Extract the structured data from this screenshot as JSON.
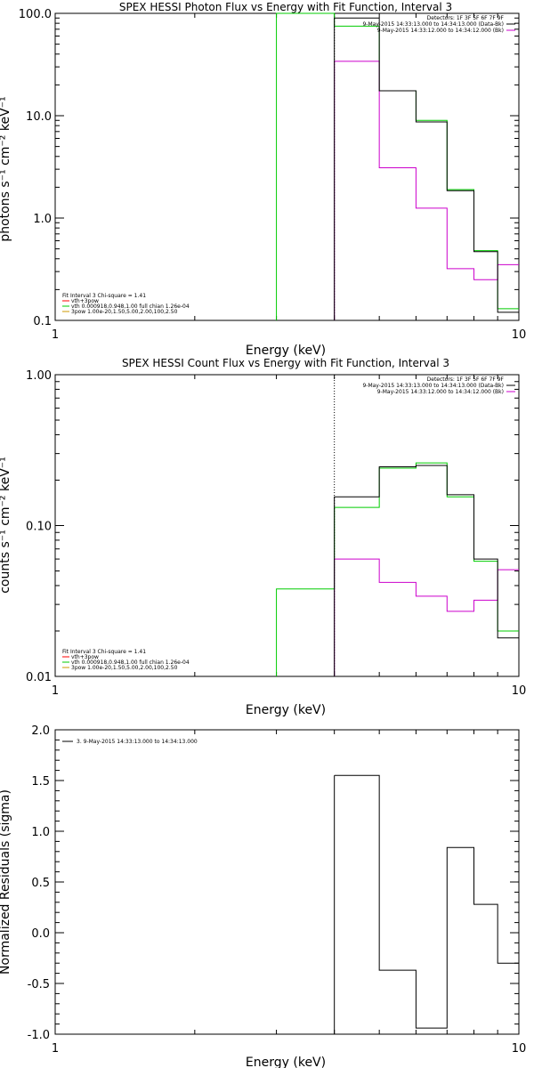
{
  "chart_data": [
    {
      "type": "line",
      "title": "SPEX HESSI Photon Flux vs Energy with Fit Function, Interval 3",
      "xlabel": "Energy (keV)",
      "ylabel": "photons s⁻¹ cm⁻² keV⁻¹",
      "xscale": "log",
      "yscale": "log",
      "xlim": [
        1,
        10
      ],
      "ylim": [
        0.1,
        100
      ],
      "x_ticks": [
        "1",
        "10"
      ],
      "y_ticks": [
        "0.1",
        "1.0",
        "10.0",
        "100.0"
      ],
      "legend_top": [
        "Detectors: 1F 3F 5F 6F 7F 9F",
        "9-May-2015 14:33:13.000 to 14:34:13.000 (Data-Bk)",
        "9-May-2015 14:33:12.000 to 14:34:12.000 (Bk)"
      ],
      "legend_top_colors": [
        "none",
        "#000000",
        "#cc00cc"
      ],
      "legend_bottom": [
        "Fit Interval 3   Chi-square = 1.41",
        "vth+3pow",
        "vth 0.000918,0.948,1.00  full chian 1.26e-04",
        "3pow 1.00e-20,1.50,5.00,2.00,100,2.50"
      ],
      "legend_bottom_colors": [
        "none",
        "#ff0000",
        "#00cc00",
        "#cc9900"
      ],
      "edges": [
        3.0,
        4.0,
        5.0,
        6.0,
        7.0,
        8.0,
        9.0,
        10.0
      ],
      "series": [
        {
          "name": "9-May-2015 14:33:13.000 to 14:34:13.000 (Data-Bk)",
          "color": "#000000",
          "values": [
            null,
            90,
            17.5,
            8.7,
            1.85,
            0.47,
            0.12
          ]
        },
        {
          "name": "vth+3pow",
          "color": "#00cc00",
          "values": [
            100,
            75,
            17.5,
            9.0,
            1.9,
            0.48,
            0.13
          ]
        },
        {
          "name": "9-May-2015 14:33:12.000 to 14:34:12.000 (Bk)",
          "color": "#cc00cc",
          "values": [
            null,
            34,
            3.1,
            1.25,
            0.32,
            0.25,
            0.35
          ]
        }
      ],
      "vline_x": 4.0
    },
    {
      "type": "line",
      "title": "SPEX HESSI Count Flux vs Energy with Fit Function, Interval 3",
      "xlabel": "Energy (keV)",
      "ylabel": "counts s⁻¹ cm⁻² keV⁻¹",
      "xscale": "log",
      "yscale": "log",
      "xlim": [
        1,
        10
      ],
      "ylim": [
        0.01,
        1
      ],
      "x_ticks": [
        "1",
        "10"
      ],
      "y_ticks": [
        "0.01",
        "0.10",
        "1.00"
      ],
      "legend_top": [
        "Detectors: 1F 3F 5F 6F 7F 9F",
        "9-May-2015 14:33:13.000 to 14:34:13.000 (Data-Bk)",
        "9-May-2015 14:33:12.000 to 14:34:12.000 (Bk)"
      ],
      "legend_top_colors": [
        "none",
        "#000000",
        "#cc00cc"
      ],
      "legend_bottom": [
        "Fit Interval 3   Chi-square = 1.41",
        "vth+3pow",
        "vth 0.000918,0.948,1.00  full chian 1.26e-04",
        "3pow 1.00e-20,1.50,5.00,2.00,100,2.50"
      ],
      "legend_bottom_colors": [
        "none",
        "#ff0000",
        "#00cc00",
        "#cc9900"
      ],
      "edges": [
        3.0,
        4.0,
        5.0,
        6.0,
        7.0,
        8.0,
        9.0,
        10.0
      ],
      "series": [
        {
          "name": "9-May-2015 14:33:13.000 to 14:34:13.000 (Data-Bk)",
          "color": "#000000",
          "values": [
            null,
            0.155,
            0.245,
            0.25,
            0.16,
            0.06,
            0.018
          ]
        },
        {
          "name": "vth+3pow",
          "color": "#00cc00",
          "values": [
            0.038,
            0.132,
            0.24,
            0.26,
            0.155,
            0.058,
            0.02
          ]
        },
        {
          "name": "9-May-2015 14:33:12.000 to 14:34:12.000 (Bk)",
          "color": "#cc00cc",
          "values": [
            null,
            0.06,
            0.042,
            0.034,
            0.027,
            0.032,
            0.051
          ]
        }
      ],
      "vline_x": 4.0
    },
    {
      "type": "line",
      "title": "",
      "xlabel": "Energy (keV)",
      "ylabel": "Normalized Residuals (sigma)",
      "xscale": "log",
      "yscale": "linear",
      "xlim": [
        1,
        10
      ],
      "ylim": [
        -1.0,
        2.0
      ],
      "x_ticks": [
        "1",
        "10"
      ],
      "y_ticks": [
        "-1.0",
        "-0.5",
        "0.0",
        "0.5",
        "1.0",
        "1.5",
        "2.0"
      ],
      "legend_top": [
        "3.  9-May-2015 14:33:13.000 to 14:34:13.000"
      ],
      "legend_top_colors": [
        "#000000"
      ],
      "edges": [
        4.0,
        5.0,
        6.0,
        7.0,
        8.0,
        9.0,
        10.0
      ],
      "series": [
        {
          "name": "3.  9-May-2015 14:33:13.000 to 14:34:13.000",
          "color": "#000000",
          "values": [
            1.55,
            -0.37,
            -0.94,
            0.84,
            0.28,
            -0.3
          ]
        }
      ]
    }
  ]
}
